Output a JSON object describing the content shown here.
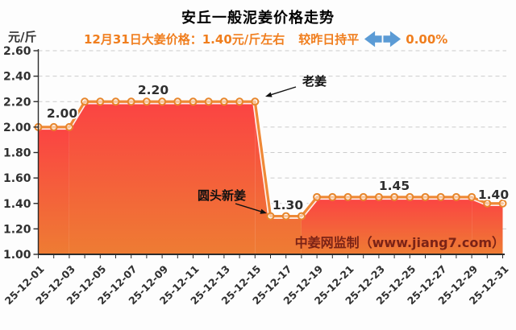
{
  "header": {
    "title": "安丘一般泥姜价格走势",
    "y_unit": "元/斤",
    "subtitle": {
      "price_text": "12月31日大姜价格：1.40元/斤左右",
      "compare_text": "较昨日持平",
      "change_text": "0.00%",
      "arrow_icon": "left-right-arrow",
      "text_color": "#f07e1e",
      "arrow_color": "#5b9bd5"
    }
  },
  "watermark": {
    "text": "中姜网监制（www.jiang7.com）",
    "color": "#7b2316"
  },
  "chart_data": {
    "type": "area",
    "title": "安丘一般泥姜价格走势",
    "ylabel": "元/斤",
    "ylim": [
      1.0,
      2.6
    ],
    "ytick_step": 0.2,
    "yticks": [
      "2.60",
      "2.40",
      "2.20",
      "2.00",
      "1.80",
      "1.60",
      "1.40",
      "1.20",
      "1.00"
    ],
    "grid": "dashed-horizontal",
    "dates": [
      "25-12-01",
      "25-12-02",
      "25-12-03",
      "25-12-04",
      "25-12-05",
      "25-12-06",
      "25-12-07",
      "25-12-08",
      "25-12-09",
      "25-12-10",
      "25-12-11",
      "25-12-12",
      "25-12-13",
      "25-12-14",
      "25-12-15",
      "25-12-16",
      "25-12-17",
      "25-12-18",
      "25-12-19",
      "25-12-20",
      "25-12-21",
      "25-12-22",
      "25-12-23",
      "25-12-24",
      "25-12-25",
      "25-12-26",
      "25-12-27",
      "25-12-28",
      "25-12-29",
      "25-12-30",
      "25-12-31"
    ],
    "values": [
      2.0,
      2.0,
      2.0,
      2.2,
      2.2,
      2.2,
      2.2,
      2.2,
      2.2,
      2.2,
      2.2,
      2.2,
      2.2,
      2.2,
      2.2,
      1.3,
      1.3,
      1.3,
      1.45,
      1.45,
      1.45,
      1.45,
      1.45,
      1.45,
      1.45,
      1.45,
      1.45,
      1.45,
      1.45,
      1.4,
      1.4
    ],
    "xtick_labels": [
      "25-12-01",
      "25-12-03",
      "25-12-05",
      "25-12-07",
      "25-12-09",
      "25-12-11",
      "25-12-13",
      "25-12-15",
      "25-12-17",
      "25-12-19",
      "25-12-21",
      "25-12-23",
      "25-12-25",
      "25-12-27",
      "25-12-29",
      "25-12-31"
    ],
    "value_labels": [
      {
        "text": "2.00",
        "near_date": "25-12-02",
        "value": 2.0
      },
      {
        "text": "2.20",
        "near_date": "25-12-08",
        "value": 2.2
      },
      {
        "text": "1.30",
        "near_date": "25-12-17",
        "value": 1.3
      },
      {
        "text": "1.45",
        "near_date": "25-12-24",
        "value": 1.45
      },
      {
        "text": "1.40",
        "near_date": "25-12-31",
        "value": 1.4
      }
    ],
    "annotations": [
      {
        "text": "老姜",
        "points_to_date": "25-12-15",
        "value": 2.2
      },
      {
        "text": "圆头新姜",
        "points_to_date": "25-12-16",
        "value": 1.3
      }
    ],
    "line_color": "#ef8937",
    "marker_color": "#e7862c",
    "area_gradient_top": "#fb4343",
    "area_gradient_bottom": "#ee7c33",
    "gridline_color": "#cccccc",
    "axis_color": "#2b2b2b",
    "tick_label_color": "#303030",
    "value_label_color": "#2f2f2f",
    "annotation_color": "#111111"
  }
}
